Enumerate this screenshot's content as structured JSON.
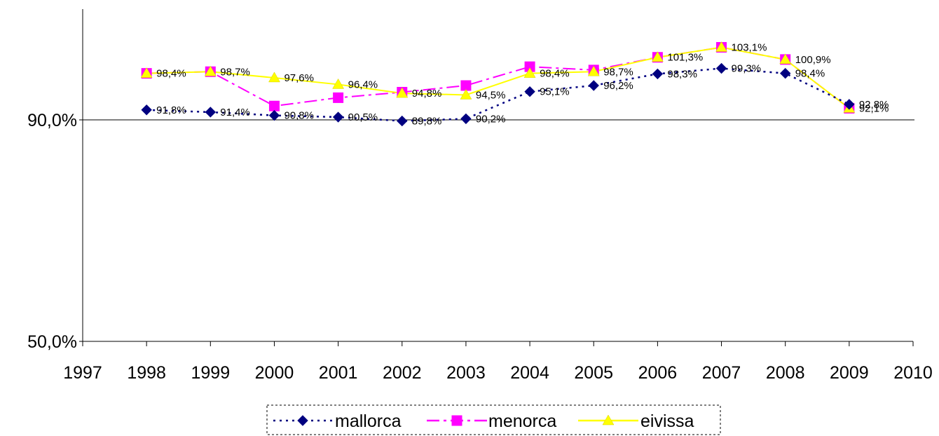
{
  "chart_data": {
    "type": "line",
    "x": [
      1998,
      1999,
      2000,
      2001,
      2002,
      2003,
      2004,
      2005,
      2006,
      2007,
      2008,
      2009
    ],
    "x_ticks": [
      "1997",
      "1998",
      "1999",
      "2000",
      "2001",
      "2002",
      "2003",
      "2004",
      "2005",
      "2006",
      "2007",
      "2008",
      "2009",
      "2010"
    ],
    "xlim": [
      1997,
      2010
    ],
    "y_ticks": [
      "50,0%",
      "90,0%"
    ],
    "ylim": [
      50,
      110
    ],
    "series": [
      {
        "name": "mallorca",
        "color": "#000080",
        "marker": "diamond",
        "line": "dotted",
        "values": [
          91.8,
          91.4,
          90.8,
          90.5,
          89.8,
          90.2,
          95.1,
          96.2,
          98.3,
          99.3,
          98.4,
          92.8
        ],
        "labels": [
          "91,8%",
          "91,4%",
          "90,8%",
          "90,5%",
          "89,8%",
          "90,2%",
          "95,1%",
          "96,2%",
          "98,3%",
          "99,3%",
          "98,4%",
          "92,8%"
        ]
      },
      {
        "name": "menorca",
        "color": "#ff00ff",
        "marker": "square",
        "line": "dashdot",
        "values": [
          98.4,
          98.7,
          92.5,
          94.0,
          95.0,
          96.2,
          99.6,
          99.0,
          101.3,
          103.1,
          100.9,
          92.1
        ],
        "labels": []
      },
      {
        "name": "eivissa",
        "color": "#ffff00",
        "marker": "triangle",
        "line": "solid",
        "values": [
          98.4,
          98.7,
          97.6,
          96.4,
          94.8,
          94.5,
          98.4,
          98.7,
          101.3,
          103.1,
          100.9,
          92.1
        ],
        "labels": [
          "98,4%",
          "98,7%",
          "97,6%",
          "96,4%",
          "94,8%",
          "94,5%",
          "98,4%",
          "98,7%",
          "101,3%",
          "103,1%",
          "100,9%",
          "92,1%"
        ]
      }
    ],
    "legend_position": "bottom",
    "grid": false
  }
}
